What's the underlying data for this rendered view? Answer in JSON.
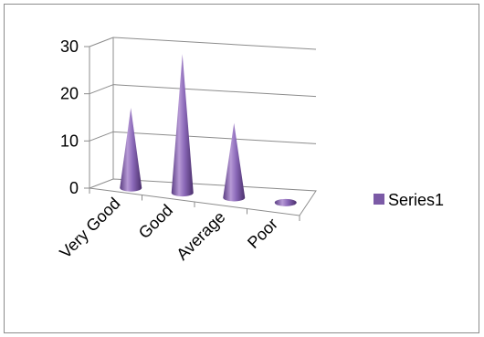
{
  "chart_data": {
    "type": "bar",
    "style": "3d-cone",
    "categories": [
      "Very Good",
      "Good",
      "Average",
      "Poor"
    ],
    "series": [
      {
        "name": "Series1",
        "values": [
          15,
          26,
          14,
          0.3
        ],
        "color": "#7b5aa6"
      }
    ],
    "y_ticks": [
      "0",
      "10",
      "20",
      "30"
    ],
    "ylim": [
      0,
      30
    ],
    "grid": true,
    "legend_position": "right"
  },
  "colors": {
    "series": "#7b5aa6",
    "series_light": "#b79ad6",
    "series_dark": "#4a2f6b",
    "gridline": "#8c8c8c",
    "frame": "#8c8c8c"
  }
}
